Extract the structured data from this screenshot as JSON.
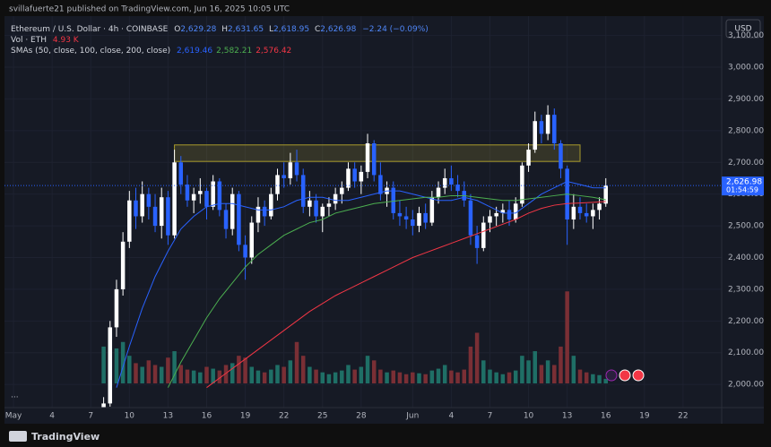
{
  "header": {
    "published": "svillafuerte21 published on TradingView.com, Jun 16, 2025 10:05 UTC"
  },
  "chart_data": {
    "type": "candlestick",
    "symbol": "Ethereum / U.S. Dollar · 4h · COINBASE",
    "ohlc": [
      {
        "label": "O",
        "value": "2,629.28"
      },
      {
        "label": "H",
        "value": "2,631.65"
      },
      {
        "label": "L",
        "value": "2,618.95"
      },
      {
        "label": "C",
        "value": "2,626.98"
      }
    ],
    "change": "−2.24 (−0.09%)",
    "volume_label": "Vol · ETH",
    "volume_value": "4.93 K",
    "sma_label": "SMAs (50, close, 100, close, 200, close)",
    "currency": "USD",
    "x": [
      8,
      8.5,
      9,
      9.5,
      10,
      10.5,
      11,
      11.5,
      12,
      12.5,
      13,
      13.5,
      14,
      14.5,
      15,
      15.5,
      16,
      16.5,
      17,
      17.5,
      18,
      18.5,
      19,
      19.5,
      20,
      20.5,
      21,
      21.5,
      22,
      22.5,
      23,
      23.5,
      24,
      24.5,
      25,
      25.5,
      26,
      26.5,
      27,
      27.5,
      28,
      28.5,
      29,
      29.5,
      30,
      30.5,
      31,
      31.5,
      32,
      32.5,
      33,
      33.5,
      34,
      34.5,
      35,
      35.5,
      36,
      36.5,
      37,
      37.5,
      38,
      38.5,
      39,
      39.5,
      40,
      40.5,
      41,
      41.5,
      42,
      42.5,
      43,
      43.5,
      44,
      44.5,
      45,
      45.5,
      46,
      46.5,
      47
    ],
    "open": [
      1810,
      1940,
      2180,
      2300,
      2450,
      2580,
      2530,
      2600,
      2560,
      2500,
      2590,
      2470,
      2700,
      2630,
      2580,
      2600,
      2610,
      2560,
      2640,
      2550,
      2490,
      2600,
      2440,
      2400,
      2510,
      2560,
      2530,
      2600,
      2660,
      2650,
      2700,
      2660,
      2560,
      2580,
      2530,
      2560,
      2570,
      2600,
      2620,
      2680,
      2640,
      2670,
      2760,
      2660,
      2600,
      2620,
      2540,
      2530,
      2520,
      2500,
      2540,
      2510,
      2590,
      2620,
      2650,
      2630,
      2610,
      2580,
      2470,
      2430,
      2510,
      2530,
      2540,
      2550,
      2520,
      2570,
      2690,
      2740,
      2830,
      2790,
      2850,
      2760,
      2680,
      2520,
      2560,
      2540,
      2530,
      2550,
      2570
    ],
    "high": [
      1960,
      2200,
      2330,
      2480,
      2610,
      2620,
      2640,
      2620,
      2600,
      2620,
      2610,
      2740,
      2720,
      2660,
      2620,
      2650,
      2620,
      2660,
      2650,
      2570,
      2620,
      2610,
      2470,
      2530,
      2590,
      2580,
      2620,
      2680,
      2700,
      2730,
      2740,
      2680,
      2610,
      2600,
      2570,
      2590,
      2620,
      2640,
      2700,
      2700,
      2690,
      2790,
      2770,
      2700,
      2640,
      2640,
      2580,
      2560,
      2550,
      2560,
      2570,
      2610,
      2640,
      2680,
      2690,
      2660,
      2640,
      2600,
      2500,
      2530,
      2550,
      2560,
      2570,
      2580,
      2590,
      2700,
      2760,
      2860,
      2850,
      2880,
      2870,
      2770,
      2690,
      2600,
      2590,
      2570,
      2570,
      2590,
      2650
    ],
    "low": [
      1800,
      1930,
      2150,
      2280,
      2430,
      2490,
      2510,
      2520,
      2480,
      2460,
      2440,
      2460,
      2600,
      2560,
      2540,
      2570,
      2520,
      2550,
      2530,
      2460,
      2470,
      2420,
      2330,
      2380,
      2480,
      2500,
      2520,
      2580,
      2620,
      2630,
      2640,
      2540,
      2530,
      2510,
      2480,
      2530,
      2550,
      2570,
      2610,
      2620,
      2600,
      2650,
      2640,
      2580,
      2560,
      2520,
      2500,
      2490,
      2470,
      2480,
      2490,
      2500,
      2570,
      2600,
      2610,
      2590,
      2560,
      2440,
      2380,
      2420,
      2480,
      2500,
      2510,
      2500,
      2510,
      2560,
      2670,
      2730,
      2760,
      2770,
      2740,
      2650,
      2440,
      2490,
      2520,
      2510,
      2490,
      2520,
      2560
    ],
    "close": [
      1940,
      2180,
      2300,
      2450,
      2580,
      2530,
      2600,
      2560,
      2500,
      2590,
      2470,
      2700,
      2630,
      2580,
      2600,
      2610,
      2560,
      2640,
      2550,
      2490,
      2600,
      2440,
      2400,
      2510,
      2560,
      2530,
      2600,
      2660,
      2650,
      2700,
      2660,
      2560,
      2580,
      2530,
      2560,
      2570,
      2600,
      2620,
      2680,
      2640,
      2670,
      2760,
      2660,
      2600,
      2620,
      2540,
      2530,
      2520,
      2500,
      2540,
      2510,
      2590,
      2620,
      2650,
      2630,
      2610,
      2580,
      2470,
      2430,
      2510,
      2530,
      2540,
      2550,
      2520,
      2570,
      2690,
      2740,
      2830,
      2790,
      2850,
      2760,
      2680,
      2520,
      2560,
      2540,
      2530,
      2550,
      2570,
      2627
    ],
    "volume": [
      40,
      55,
      38,
      45,
      30,
      22,
      18,
      25,
      20,
      18,
      28,
      35,
      20,
      15,
      14,
      12,
      18,
      16,
      14,
      20,
      22,
      30,
      28,
      18,
      14,
      12,
      15,
      20,
      18,
      25,
      45,
      30,
      18,
      15,
      12,
      10,
      12,
      14,
      20,
      15,
      18,
      30,
      25,
      15,
      12,
      14,
      12,
      10,
      12,
      11,
      10,
      14,
      16,
      20,
      14,
      12,
      15,
      40,
      55,
      25,
      15,
      12,
      10,
      12,
      14,
      30,
      25,
      35,
      20,
      25,
      20,
      40,
      100,
      30,
      15,
      12,
      10,
      9,
      4.93
    ],
    "volume_lim": [
      0,
      110
    ],
    "up_color": "#ffffff",
    "down_color": "#2962ff",
    "volume_up_color": "#1f6f66",
    "volume_down_color": "#7a2f35",
    "smas": [
      {
        "label": "2,619.46",
        "color": "#2962ff",
        "x": [
          9,
          10,
          11,
          12,
          13,
          14,
          15,
          16,
          17,
          18,
          19,
          20,
          21,
          22,
          23,
          24,
          25,
          26,
          27,
          28,
          29,
          30,
          31,
          32,
          33,
          34,
          35,
          36,
          37,
          38,
          39,
          40,
          41,
          42,
          43,
          44,
          45,
          46,
          47
        ],
        "values": [
          1990,
          2120,
          2240,
          2340,
          2420,
          2490,
          2530,
          2560,
          2570,
          2570,
          2560,
          2550,
          2550,
          2560,
          2580,
          2590,
          2590,
          2580,
          2580,
          2590,
          2600,
          2610,
          2610,
          2600,
          2590,
          2580,
          2580,
          2590,
          2580,
          2560,
          2540,
          2540,
          2570,
          2600,
          2620,
          2640,
          2630,
          2620,
          2619.46
        ]
      },
      {
        "label": "2,582.21",
        "color": "#4caf50",
        "x": [
          13,
          14,
          15,
          16,
          17,
          18,
          19,
          20,
          21,
          22,
          23,
          24,
          25,
          26,
          27,
          28,
          29,
          30,
          31,
          32,
          33,
          34,
          35,
          36,
          37,
          38,
          39,
          40,
          41,
          42,
          43,
          44,
          45,
          46,
          47
        ],
        "values": [
          1990,
          2070,
          2140,
          2210,
          2270,
          2320,
          2370,
          2410,
          2440,
          2470,
          2490,
          2510,
          2520,
          2540,
          2550,
          2560,
          2570,
          2575,
          2580,
          2585,
          2590,
          2590,
          2595,
          2595,
          2590,
          2585,
          2580,
          2580,
          2585,
          2590,
          2595,
          2600,
          2595,
          2590,
          2582.21
        ]
      },
      {
        "label": "2,576.42",
        "color": "#f23645",
        "x": [
          16,
          17,
          18,
          19,
          20,
          21,
          22,
          23,
          24,
          25,
          26,
          27,
          28,
          29,
          30,
          31,
          32,
          33,
          34,
          35,
          36,
          37,
          38,
          39,
          40,
          41,
          42,
          43,
          44,
          45,
          46,
          47
        ],
        "values": [
          1990,
          2020,
          2050,
          2080,
          2110,
          2140,
          2170,
          2200,
          2230,
          2255,
          2280,
          2300,
          2320,
          2340,
          2360,
          2380,
          2400,
          2415,
          2430,
          2445,
          2460,
          2475,
          2490,
          2505,
          2520,
          2540,
          2555,
          2565,
          2570,
          2572,
          2574,
          2576.42
        ]
      }
    ],
    "zone": {
      "x": [
        13.5,
        45
      ],
      "y": [
        2703,
        2755
      ]
    },
    "last_price": {
      "value": 2626.98,
      "label": "2,626.98"
    },
    "countdown": "01:54:59",
    "xlim": [
      0.3,
      56
    ],
    "ylim": [
      1927,
      3161
    ],
    "xticks": [
      {
        "value": 1,
        "label": "May"
      },
      4,
      7,
      10,
      13,
      16,
      19,
      22,
      25,
      28,
      {
        "value": 32,
        "label": "Jun"
      },
      {
        "value": 35,
        "label": "4"
      },
      {
        "value": 38,
        "label": "7"
      },
      {
        "value": 41,
        "label": "10"
      },
      {
        "value": 44,
        "label": "13"
      },
      {
        "value": 47,
        "label": "16"
      },
      {
        "value": 50,
        "label": "19"
      },
      {
        "value": 53,
        "label": "22"
      }
    ],
    "yticks": [
      {
        "value": 2000,
        "label": "2,000.00"
      },
      {
        "value": 2100,
        "label": "2,100.00"
      },
      {
        "value": 2200,
        "label": "2,200.00"
      },
      {
        "value": 2300,
        "label": "2,300.00"
      },
      {
        "value": 2400,
        "label": "2,400.00"
      },
      {
        "value": 2500,
        "label": "2,500.00"
      },
      {
        "value": 2600,
        "label": "2,600.00"
      },
      {
        "value": 2700,
        "label": "2,700.00"
      },
      {
        "value": 2800,
        "label": "2,800.00"
      },
      {
        "value": 2900,
        "label": "2,900.00"
      },
      {
        "value": 3000,
        "label": "3,000.00"
      },
      {
        "value": 3100,
        "label": "3,100.00"
      }
    ],
    "grid": true,
    "more": "...",
    "brand": "TradingView"
  }
}
